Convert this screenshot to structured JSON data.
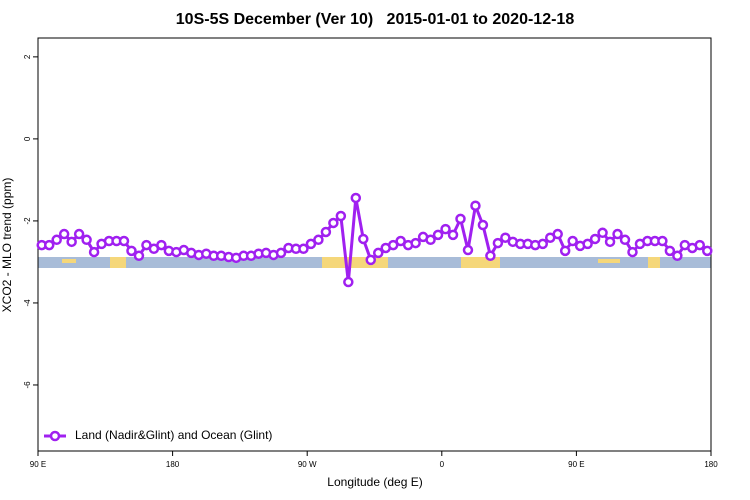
{
  "chart_data": {
    "type": "line",
    "title": "10S-5S December (Ver 10)   2015-01-01 to 2020-12-18",
    "x_label": "Longitude (deg E)",
    "y_label": "XCO2 - MLO trend (ppm)",
    "xlim": [
      90,
      540
    ],
    "xticks": [
      {
        "value": 90,
        "label": "90 E"
      },
      180,
      {
        "value": 270,
        "label": "90 W"
      },
      {
        "value": 360,
        "label": "0"
      },
      {
        "value": 450,
        "label": "90 E"
      },
      {
        "value": 540,
        "label": "180"
      }
    ],
    "ylim": [
      -7.61,
      2.46
    ],
    "yticks": [
      2,
      0,
      -2,
      -4,
      -6
    ],
    "legend_position": "bottom-left",
    "x": [
      92.5,
      97.5,
      102.5,
      107.5,
      112.5,
      117.5,
      122.5,
      127.5,
      132.5,
      137.5,
      142.5,
      147.5,
      152.5,
      157.5,
      162.5,
      167.5,
      172.5,
      177.5,
      182.5,
      187.5,
      192.5,
      197.5,
      202.5,
      207.5,
      212.5,
      217.5,
      222.5,
      227.5,
      232.5,
      237.5,
      242.5,
      247.5,
      252.5,
      257.5,
      262.5,
      267.5,
      272.5,
      277.5,
      282.5,
      287.5,
      292.5,
      297.5,
      302.5,
      307.5,
      312.5,
      317.5,
      322.5,
      327.5,
      332.5,
      337.5,
      342.5,
      347.5,
      352.5,
      357.5,
      362.5,
      367.5,
      372.5,
      377.5,
      382.5,
      387.5,
      392.5,
      397.5,
      402.5,
      407.5,
      412.5,
      417.5,
      422.5,
      427.5,
      432.5,
      437.5,
      442.5,
      447.5,
      452.5,
      457.5,
      462.5,
      467.5,
      472.5,
      477.5,
      482.5,
      487.5,
      492.5,
      497.5,
      502.5,
      507.5,
      512.5,
      517.5,
      522.5,
      527.5,
      532.5,
      537.5
    ],
    "series": [
      {
        "name": "Land (Nadir&Glint) and Ocean (Glint)",
        "color": "#a020f0",
        "values": [
          -2.59,
          -2.59,
          -2.46,
          -2.32,
          -2.51,
          -2.32,
          -2.46,
          -2.76,
          -2.56,
          -2.49,
          -2.49,
          -2.49,
          -2.73,
          -2.85,
          -2.59,
          -2.68,
          -2.59,
          -2.73,
          -2.76,
          -2.71,
          -2.78,
          -2.83,
          -2.8,
          -2.85,
          -2.85,
          -2.88,
          -2.9,
          -2.85,
          -2.85,
          -2.8,
          -2.78,
          -2.83,
          -2.78,
          -2.66,
          -2.68,
          -2.68,
          -2.56,
          -2.46,
          -2.27,
          -2.05,
          -1.88,
          -3.49,
          -1.44,
          -2.44,
          -2.95,
          -2.78,
          -2.66,
          -2.59,
          -2.49,
          -2.59,
          -2.54,
          -2.39,
          -2.46,
          -2.34,
          -2.2,
          -2.34,
          -1.95,
          -2.71,
          -1.63,
          -2.1,
          -2.85,
          -2.54,
          -2.41,
          -2.51,
          -2.56,
          -2.56,
          -2.59,
          -2.56,
          -2.41,
          -2.32,
          -2.73,
          -2.49,
          -2.61,
          -2.56,
          -2.44,
          -2.29,
          -2.51,
          -2.32,
          -2.46,
          -2.76,
          -2.56,
          -2.49,
          -2.49,
          -2.49,
          -2.73,
          -2.85,
          -2.59,
          -2.66,
          -2.59,
          -2.73
        ]
      }
    ]
  }
}
